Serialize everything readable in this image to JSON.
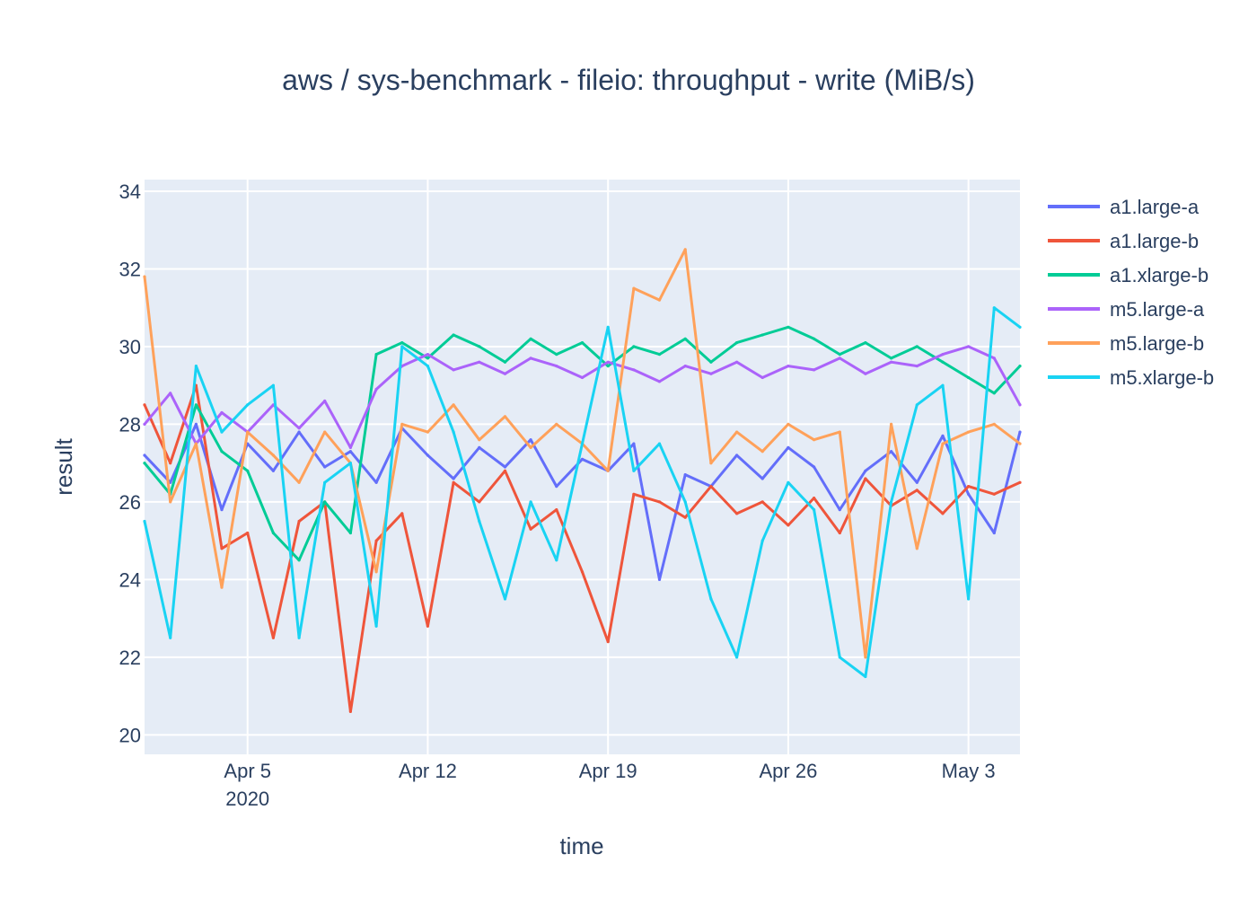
{
  "chart_data": {
    "type": "line",
    "title": "aws / sys-benchmark - fileio: throughput - write (MiB/s)",
    "xlabel": "time",
    "ylabel": "result",
    "x_range": [
      "2020-04-01",
      "2020-05-05"
    ],
    "ylim": [
      19.5,
      34.3
    ],
    "y_ticks": [
      20,
      22,
      24,
      26,
      28,
      30,
      32,
      34
    ],
    "x_ticks": [
      {
        "date": "2020-04-05",
        "label": "Apr 5",
        "sublabel": "2020"
      },
      {
        "date": "2020-04-12",
        "label": "Apr 12",
        "sublabel": ""
      },
      {
        "date": "2020-04-19",
        "label": "Apr 19",
        "sublabel": ""
      },
      {
        "date": "2020-04-26",
        "label": "Apr 26",
        "sublabel": ""
      },
      {
        "date": "2020-05-03",
        "label": "May 3",
        "sublabel": ""
      }
    ],
    "grid": true,
    "legend_position": "right",
    "plot_background": "#e5ecf6",
    "series": [
      {
        "name": "a1.large-a",
        "color": "#636efa",
        "x": [
          "2020-04-01",
          "2020-04-02",
          "2020-04-03",
          "2020-04-04",
          "2020-04-05",
          "2020-04-06",
          "2020-04-07",
          "2020-04-08",
          "2020-04-09",
          "2020-04-10",
          "2020-04-11",
          "2020-04-12",
          "2020-04-13",
          "2020-04-14",
          "2020-04-15",
          "2020-04-16",
          "2020-04-17",
          "2020-04-18",
          "2020-04-19",
          "2020-04-20",
          "2020-04-21",
          "2020-04-22",
          "2020-04-23",
          "2020-04-24",
          "2020-04-25",
          "2020-04-26",
          "2020-04-27",
          "2020-04-28",
          "2020-04-29",
          "2020-04-30",
          "2020-05-01",
          "2020-05-02",
          "2020-05-03",
          "2020-05-04",
          "2020-05-05"
        ],
        "y": [
          27.2,
          26.5,
          28.0,
          25.8,
          27.5,
          26.8,
          27.8,
          26.9,
          27.3,
          26.5,
          27.9,
          27.2,
          26.6,
          27.4,
          26.9,
          27.6,
          26.4,
          27.1,
          26.8,
          27.5,
          24.0,
          26.7,
          26.4,
          27.2,
          26.6,
          27.4,
          26.9,
          25.8,
          26.8,
          27.3,
          26.5,
          27.7,
          26.2,
          25.2,
          27.8
        ]
      },
      {
        "name": "a1.large-b",
        "color": "#ef553b",
        "x": [
          "2020-04-01",
          "2020-04-02",
          "2020-04-03",
          "2020-04-04",
          "2020-04-05",
          "2020-04-06",
          "2020-04-07",
          "2020-04-08",
          "2020-04-09",
          "2020-04-10",
          "2020-04-11",
          "2020-04-12",
          "2020-04-13",
          "2020-04-14",
          "2020-04-15",
          "2020-04-16",
          "2020-04-17",
          "2020-04-18",
          "2020-04-19",
          "2020-04-20",
          "2020-04-21",
          "2020-04-22",
          "2020-04-23",
          "2020-04-24",
          "2020-04-25",
          "2020-04-26",
          "2020-04-27",
          "2020-04-28",
          "2020-04-29",
          "2020-04-30",
          "2020-05-01",
          "2020-05-02",
          "2020-05-03",
          "2020-05-04",
          "2020-05-05"
        ],
        "y": [
          28.5,
          27.0,
          29.0,
          24.8,
          25.2,
          22.5,
          25.5,
          26.0,
          20.6,
          25.0,
          25.7,
          22.8,
          26.5,
          26.0,
          26.8,
          25.3,
          25.8,
          24.2,
          22.4,
          26.2,
          26.0,
          25.6,
          26.4,
          25.7,
          26.0,
          25.4,
          26.1,
          25.2,
          26.6,
          25.9,
          26.3,
          25.7,
          26.4,
          26.2,
          26.5
        ]
      },
      {
        "name": "a1.xlarge-b",
        "color": "#00cc96",
        "x": [
          "2020-04-01",
          "2020-04-02",
          "2020-04-03",
          "2020-04-04",
          "2020-04-05",
          "2020-04-06",
          "2020-04-07",
          "2020-04-08",
          "2020-04-09",
          "2020-04-10",
          "2020-04-11",
          "2020-04-12",
          "2020-04-13",
          "2020-04-14",
          "2020-04-15",
          "2020-04-16",
          "2020-04-17",
          "2020-04-18",
          "2020-04-19",
          "2020-04-20",
          "2020-04-21",
          "2020-04-22",
          "2020-04-23",
          "2020-04-24",
          "2020-04-25",
          "2020-04-26",
          "2020-04-27",
          "2020-04-28",
          "2020-04-29",
          "2020-04-30",
          "2020-05-01",
          "2020-05-02",
          "2020-05-03",
          "2020-05-04",
          "2020-05-05"
        ],
        "y": [
          27.0,
          26.2,
          28.5,
          27.3,
          26.8,
          25.2,
          24.5,
          26.0,
          25.2,
          29.8,
          30.1,
          29.7,
          30.3,
          30.0,
          29.6,
          30.2,
          29.8,
          30.1,
          29.5,
          30.0,
          29.8,
          30.2,
          29.6,
          30.1,
          30.3,
          30.5,
          30.2,
          29.8,
          30.1,
          29.7,
          30.0,
          29.6,
          29.2,
          28.8,
          29.5
        ]
      },
      {
        "name": "m5.large-a",
        "color": "#ab63fa",
        "x": [
          "2020-04-01",
          "2020-04-02",
          "2020-04-03",
          "2020-04-04",
          "2020-04-05",
          "2020-04-06",
          "2020-04-07",
          "2020-04-08",
          "2020-04-09",
          "2020-04-10",
          "2020-04-11",
          "2020-04-12",
          "2020-04-13",
          "2020-04-14",
          "2020-04-15",
          "2020-04-16",
          "2020-04-17",
          "2020-04-18",
          "2020-04-19",
          "2020-04-20",
          "2020-04-21",
          "2020-04-22",
          "2020-04-23",
          "2020-04-24",
          "2020-04-25",
          "2020-04-26",
          "2020-04-27",
          "2020-04-28",
          "2020-04-29",
          "2020-04-30",
          "2020-05-01",
          "2020-05-02",
          "2020-05-03",
          "2020-05-04",
          "2020-05-05"
        ],
        "y": [
          28.0,
          28.8,
          27.5,
          28.3,
          27.8,
          28.5,
          27.9,
          28.6,
          27.4,
          28.9,
          29.5,
          29.8,
          29.4,
          29.6,
          29.3,
          29.7,
          29.5,
          29.2,
          29.6,
          29.4,
          29.1,
          29.5,
          29.3,
          29.6,
          29.2,
          29.5,
          29.4,
          29.7,
          29.3,
          29.6,
          29.5,
          29.8,
          30.0,
          29.7,
          28.5
        ]
      },
      {
        "name": "m5.large-b",
        "color": "#ffa15a",
        "x": [
          "2020-04-01",
          "2020-04-02",
          "2020-04-03",
          "2020-04-04",
          "2020-04-05",
          "2020-04-06",
          "2020-04-07",
          "2020-04-08",
          "2020-04-09",
          "2020-04-10",
          "2020-04-11",
          "2020-04-12",
          "2020-04-13",
          "2020-04-14",
          "2020-04-15",
          "2020-04-16",
          "2020-04-17",
          "2020-04-18",
          "2020-04-19",
          "2020-04-20",
          "2020-04-21",
          "2020-04-22",
          "2020-04-23",
          "2020-04-24",
          "2020-04-25",
          "2020-04-26",
          "2020-04-27",
          "2020-04-28",
          "2020-04-29",
          "2020-04-30",
          "2020-05-01",
          "2020-05-02",
          "2020-05-03",
          "2020-05-04",
          "2020-05-05"
        ],
        "y": [
          31.8,
          26.0,
          27.5,
          23.8,
          27.8,
          27.2,
          26.5,
          27.8,
          27.0,
          24.2,
          28.0,
          27.8,
          28.5,
          27.6,
          28.2,
          27.4,
          28.0,
          27.5,
          26.8,
          31.5,
          31.2,
          32.5,
          27.0,
          27.8,
          27.3,
          28.0,
          27.6,
          27.8,
          22.0,
          28.0,
          24.8,
          27.5,
          27.8,
          28.0,
          27.5
        ]
      },
      {
        "name": "m5.xlarge-b",
        "color": "#19d3f3",
        "x": [
          "2020-04-01",
          "2020-04-02",
          "2020-04-03",
          "2020-04-04",
          "2020-04-05",
          "2020-04-06",
          "2020-04-07",
          "2020-04-08",
          "2020-04-09",
          "2020-04-10",
          "2020-04-11",
          "2020-04-12",
          "2020-04-13",
          "2020-04-14",
          "2020-04-15",
          "2020-04-16",
          "2020-04-17",
          "2020-04-18",
          "2020-04-19",
          "2020-04-20",
          "2020-04-21",
          "2020-04-22",
          "2020-04-23",
          "2020-04-24",
          "2020-04-25",
          "2020-04-26",
          "2020-04-27",
          "2020-04-28",
          "2020-04-29",
          "2020-04-30",
          "2020-05-01",
          "2020-05-02",
          "2020-05-03",
          "2020-05-04",
          "2020-05-05"
        ],
        "y": [
          25.5,
          22.5,
          29.5,
          27.8,
          28.5,
          29.0,
          22.5,
          26.5,
          27.0,
          22.8,
          30.0,
          29.5,
          27.8,
          25.5,
          23.5,
          26.0,
          24.5,
          27.5,
          30.5,
          26.8,
          27.5,
          26.0,
          23.5,
          22.0,
          25.0,
          26.5,
          25.8,
          22.0,
          21.5,
          26.0,
          28.5,
          29.0,
          23.5,
          31.0,
          30.5
        ]
      }
    ]
  }
}
